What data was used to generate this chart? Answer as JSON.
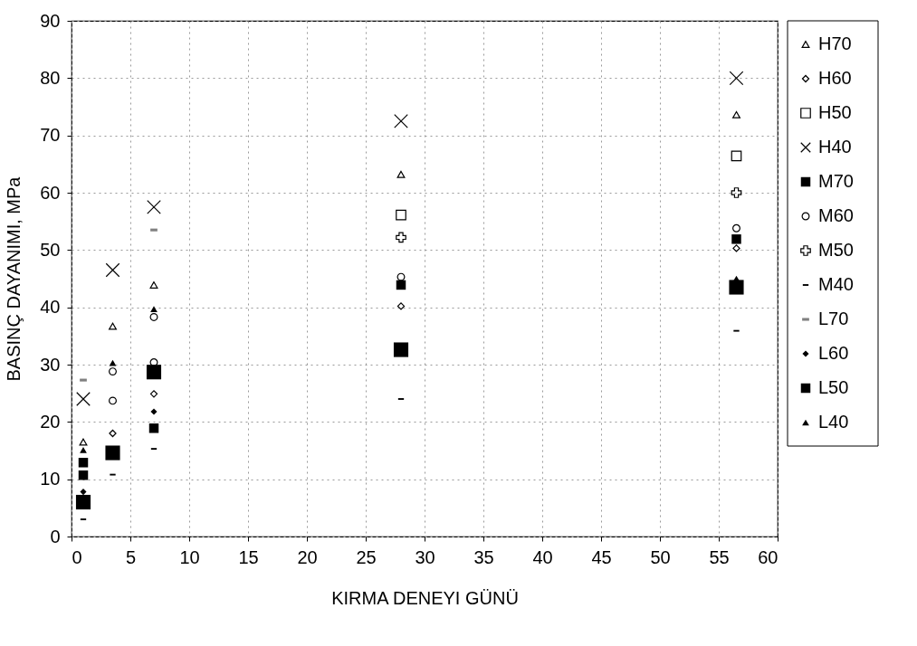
{
  "chart_data": {
    "type": "scatter",
    "xlabel": "KIRMA DENEYI   GÜNÜ",
    "ylabel": "BASINÇ DAYANIMI, MPa",
    "x": [
      1,
      3.5,
      7,
      28,
      56.5
    ],
    "xlim": [
      0,
      60
    ],
    "xticks": [
      0,
      5,
      10,
      15,
      20,
      25,
      30,
      35,
      40,
      45,
      50,
      55,
      60
    ],
    "ylim": [
      0,
      90
    ],
    "yticks": [
      0,
      10,
      20,
      30,
      40,
      50,
      60,
      70,
      80,
      90
    ],
    "grid": true,
    "legend": "right",
    "series": [
      {
        "name": "H70",
        "color": "#000000",
        "marker": "triangle-open",
        "values": [
          16.5,
          36.7,
          43.9,
          63.2,
          73.6
        ]
      },
      {
        "name": "H60",
        "color": "#000000",
        "marker": "diamond-open",
        "values": [
          null,
          18.0,
          24.9,
          40.2,
          50.3
        ]
      },
      {
        "name": "H50",
        "color": "#000000",
        "marker": "square-open",
        "values": [
          null,
          null,
          null,
          56.1,
          66.4
        ]
      },
      {
        "name": "H40",
        "color": "#000000",
        "marker": "x",
        "values": [
          24.0,
          46.5,
          57.5,
          72.5,
          80.0
        ]
      },
      {
        "name": "M70",
        "color": "#000000",
        "marker": "square-large",
        "values": [
          6.0,
          14.6,
          28.7,
          32.6,
          43.5
        ]
      },
      {
        "name": "M60",
        "color": "#000000",
        "marker": "circle-open",
        "values": [
          null,
          28.8,
          38.3,
          45.3,
          53.8
        ]
      },
      {
        "name": "M50",
        "color": "#000000",
        "marker": "plus",
        "values": [
          null,
          null,
          null,
          52.2,
          60.0
        ]
      },
      {
        "name": "M40",
        "color": "#000000",
        "marker": "square-dash",
        "values": [
          3.0,
          10.8,
          15.3,
          24.0,
          35.9
        ]
      },
      {
        "name": "L70",
        "color": "#808080",
        "marker": "square-line",
        "values": [
          27.3,
          null,
          53.5,
          null,
          null
        ]
      },
      {
        "name": "L60",
        "color": "#000000",
        "marker": "diamond",
        "values": [
          7.8,
          null,
          21.8,
          null,
          null
        ]
      },
      {
        "name": "L50",
        "color": "#000000",
        "marker": "square",
        "values": [
          12.9,
          null,
          18.9,
          43.9,
          51.9
        ]
      },
      {
        "name": "L40",
        "color": "#000000",
        "marker": "triangle",
        "values": [
          15.1,
          30.3,
          39.7,
          null,
          45.0
        ]
      },
      {
        "color": "#000000",
        "marker": "circle-open",
        "values": [
          null,
          23.7,
          30.4,
          null,
          null
        ]
      },
      {
        "color": "#000000",
        "marker": "square",
        "values": [
          10.7,
          null,
          null,
          null,
          null
        ]
      }
    ]
  }
}
